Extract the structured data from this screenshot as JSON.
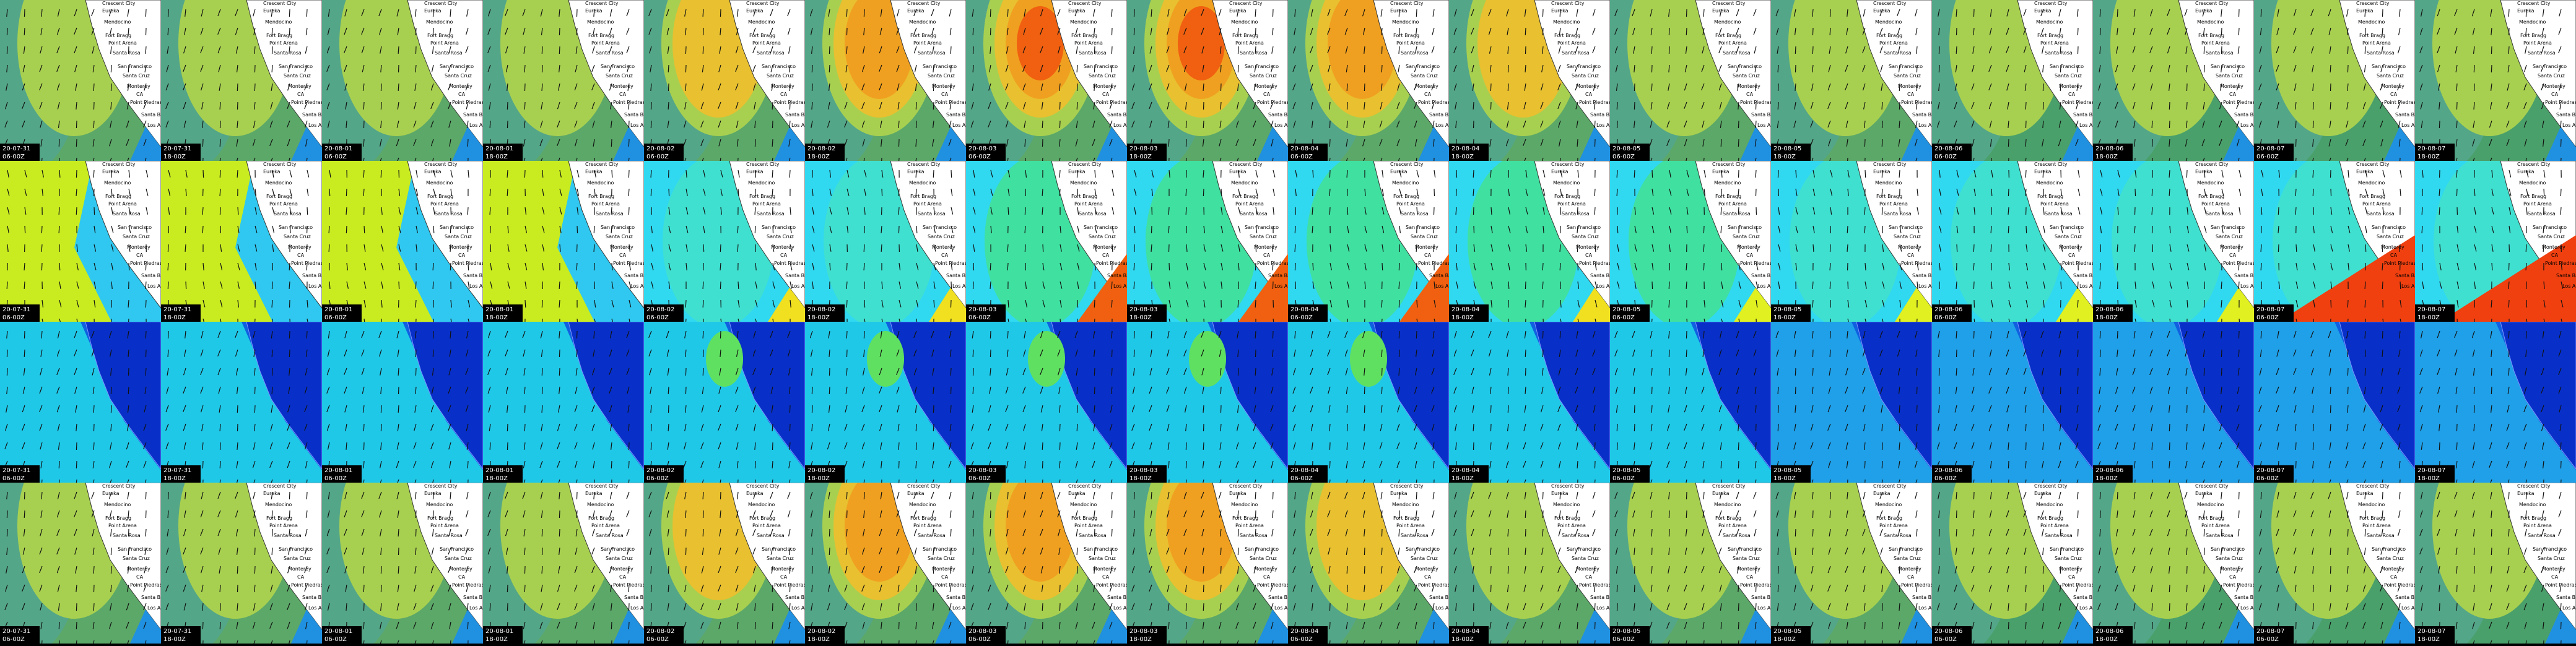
{
  "frames": [
    {
      "date": "20-07-31",
      "time": "06-00Z"
    },
    {
      "date": "20-07-31",
      "time": "18-00Z"
    },
    {
      "date": "20-08-01",
      "time": "06-00Z"
    },
    {
      "date": "20-08-01",
      "time": "18-00Z"
    },
    {
      "date": "20-08-02",
      "time": "06-00Z"
    },
    {
      "date": "20-08-02",
      "time": "18-00Z"
    },
    {
      "date": "20-08-03",
      "time": "06-00Z"
    },
    {
      "date": "20-08-03",
      "time": "18-00Z"
    },
    {
      "date": "20-08-04",
      "time": "06-00Z"
    },
    {
      "date": "20-08-04",
      "time": "18-00Z"
    },
    {
      "date": "20-08-05",
      "time": "06-00Z"
    },
    {
      "date": "20-08-05",
      "time": "18-00Z"
    },
    {
      "date": "20-08-06",
      "time": "06-00Z"
    },
    {
      "date": "20-08-06",
      "time": "18-00Z"
    },
    {
      "date": "20-08-07",
      "time": "06-00Z"
    },
    {
      "date": "20-08-07",
      "time": "18-00Z"
    }
  ],
  "map_labels": [
    "Crescent City",
    "Eureka",
    "Mendocino",
    "Fort Bragg",
    "Point Arena",
    "Santa Rosa",
    "San Francisco",
    "Santa Cruz",
    "Monterey",
    "CA",
    "Point Piedras",
    "Santa Barbara",
    "Los Angeles"
  ]
}
